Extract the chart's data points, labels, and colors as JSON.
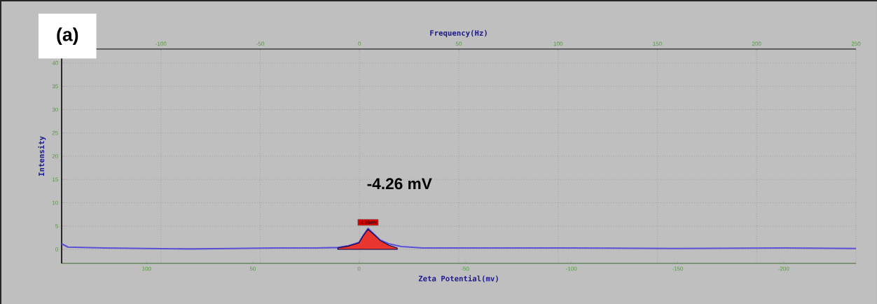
{
  "chart_data": {
    "type": "line",
    "xlabel": "Zeta Potential(mv)",
    "x2label": "Frequency(Hz)",
    "ylabel": "Intensity",
    "xlim": [
      140,
      -234
    ],
    "xticks": [
      100,
      50,
      0,
      -50,
      -100,
      -150,
      -200
    ],
    "x2lim": [
      -150,
      250
    ],
    "x2ticks": [
      -100,
      -50,
      0,
      50,
      100,
      150,
      200,
      250
    ],
    "ylim": [
      -3,
      43
    ],
    "yticks": [
      0,
      5,
      10,
      15,
      20,
      25,
      30,
      35,
      40
    ],
    "grid": true,
    "line_style": "solid",
    "marker": "none",
    "series": [
      {
        "color": "#5b50d6",
        "x": [
          140,
          137,
          120,
          100,
          80,
          60,
          40,
          20,
          10,
          5,
          0,
          -2,
          -4.26,
          -7,
          -10,
          -14,
          -20,
          -30,
          -50,
          -100,
          -150,
          -200,
          -234
        ],
        "values": [
          1.2,
          0.5,
          0.3,
          0.2,
          0.1,
          0.2,
          0.3,
          0.3,
          0.4,
          0.8,
          1.5,
          3,
          4.5,
          3.3,
          2,
          1.2,
          0.6,
          0.3,
          0.3,
          0.3,
          0.2,
          0.3,
          0.2
        ]
      },
      {
        "type": "area",
        "color": "#e8352f",
        "x": [
          10,
          5,
          0,
          -2,
          -4.26,
          -7,
          -10,
          -14,
          -18
        ],
        "values": [
          0.3,
          0.7,
          1.4,
          2.9,
          4.3,
          3.2,
          1.9,
          0.9,
          0.3
        ]
      }
    ],
    "annotations": [
      "(a)",
      "-4.26 mV",
      {
        "text": "-4.26mV",
        "x": -4.26,
        "y": 4.5
      }
    ]
  }
}
